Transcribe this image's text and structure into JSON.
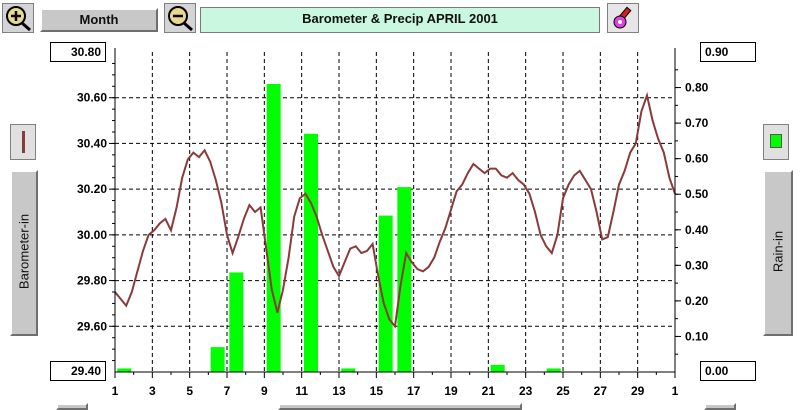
{
  "toolbar": {
    "zoom_in_icon": "magnifier-plus-icon",
    "zoom_out_icon": "magnifier-minus-icon",
    "period_button_label": "Month",
    "chart_title": "Barometer & Precip  APRIL 2001",
    "settings_icon": "paint-tool-icon"
  },
  "left_panel": {
    "legend_swatch_color": "#8b3a3a",
    "axis_button_label": "Barometer-in"
  },
  "right_panel": {
    "legend_swatch_color": "#00ff00",
    "axis_button_label": "Rain-in"
  },
  "y_left": {
    "top_label": "30.80",
    "bottom_label": "29.40",
    "tick_labels": [
      "30.60",
      "30.40",
      "30.20",
      "30.00",
      "29.80",
      "29.60"
    ]
  },
  "y_right": {
    "top_label": "0.90",
    "bottom_label": "0.00",
    "tick_labels": [
      "0.80",
      "0.70",
      "0.60",
      "0.50",
      "0.40",
      "0.30",
      "0.20",
      "0.10"
    ]
  },
  "chart_data": {
    "type": "bar",
    "title": "Barometer & Precip  APRIL 2001",
    "x_tick_labels": [
      "1",
      "3",
      "5",
      "7",
      "9",
      "11",
      "13",
      "15",
      "17",
      "19",
      "21",
      "23",
      "25",
      "27",
      "29",
      "1"
    ],
    "xlim": [
      1,
      31
    ],
    "grid": true,
    "series": [
      {
        "name": "Barometer-in",
        "type": "line",
        "color": "#8b3a3a",
        "ylim": [
          29.4,
          30.8
        ],
        "x": [
          1,
          1.3,
          1.6,
          1.9,
          2.2,
          2.5,
          2.8,
          3.1,
          3.4,
          3.7,
          4.0,
          4.3,
          4.6,
          4.9,
          5.2,
          5.5,
          5.8,
          6.1,
          6.4,
          6.7,
          7.0,
          7.3,
          7.6,
          7.9,
          8.2,
          8.5,
          8.8,
          9.1,
          9.4,
          9.7,
          10.0,
          10.3,
          10.6,
          10.9,
          11.2,
          11.5,
          11.8,
          12.1,
          12.4,
          12.7,
          13.0,
          13.3,
          13.6,
          13.9,
          14.2,
          14.5,
          14.8,
          15.1,
          15.4,
          15.7,
          16.0,
          16.3,
          16.6,
          16.9,
          17.2,
          17.5,
          17.8,
          18.1,
          18.4,
          18.7,
          19.0,
          19.3,
          19.6,
          19.9,
          20.2,
          20.5,
          20.8,
          21.1,
          21.4,
          21.7,
          22.0,
          22.3,
          22.6,
          22.9,
          23.2,
          23.5,
          23.8,
          24.1,
          24.4,
          24.7,
          25.0,
          25.3,
          25.6,
          25.9,
          26.2,
          26.5,
          26.8,
          27.1,
          27.4,
          27.7,
          28.0,
          28.3,
          28.6,
          28.9,
          29.2,
          29.5,
          29.8,
          30.1,
          30.4,
          30.7,
          31.0
        ],
        "values": [
          29.75,
          29.72,
          29.69,
          29.75,
          29.84,
          29.93,
          30.0,
          30.02,
          30.05,
          30.07,
          30.02,
          30.12,
          30.25,
          30.33,
          30.36,
          30.34,
          30.37,
          30.32,
          30.24,
          30.14,
          30.0,
          29.92,
          29.99,
          30.07,
          30.13,
          30.1,
          30.12,
          29.94,
          29.76,
          29.66,
          29.76,
          29.9,
          30.08,
          30.16,
          30.18,
          30.14,
          30.08,
          30.0,
          29.93,
          29.86,
          29.82,
          29.88,
          29.94,
          29.95,
          29.92,
          29.93,
          29.96,
          29.82,
          29.7,
          29.63,
          29.6,
          29.78,
          29.92,
          29.88,
          29.85,
          29.84,
          29.86,
          29.9,
          29.97,
          30.03,
          30.11,
          30.19,
          30.22,
          30.27,
          30.31,
          30.29,
          30.27,
          30.29,
          30.29,
          30.26,
          30.25,
          30.27,
          30.24,
          30.22,
          30.18,
          30.1,
          30.0,
          29.95,
          29.92,
          30.0,
          30.16,
          30.22,
          30.26,
          30.28,
          30.24,
          30.2,
          30.1,
          29.98,
          29.99,
          30.1,
          30.22,
          30.28,
          30.36,
          30.4,
          30.54,
          30.61,
          30.5,
          30.42,
          30.36,
          30.25,
          30.18
        ]
      },
      {
        "name": "Rain-in",
        "type": "bar",
        "color": "#00ff00",
        "ylim": [
          0,
          0.9
        ],
        "x": [
          1.5,
          6.5,
          7.5,
          9.5,
          11.5,
          13.5,
          15.5,
          16.5,
          21.5,
          24.5
        ],
        "values": [
          0.01,
          0.07,
          0.28,
          0.81,
          0.67,
          0.01,
          0.44,
          0.52,
          0.02,
          0.01
        ]
      }
    ]
  }
}
